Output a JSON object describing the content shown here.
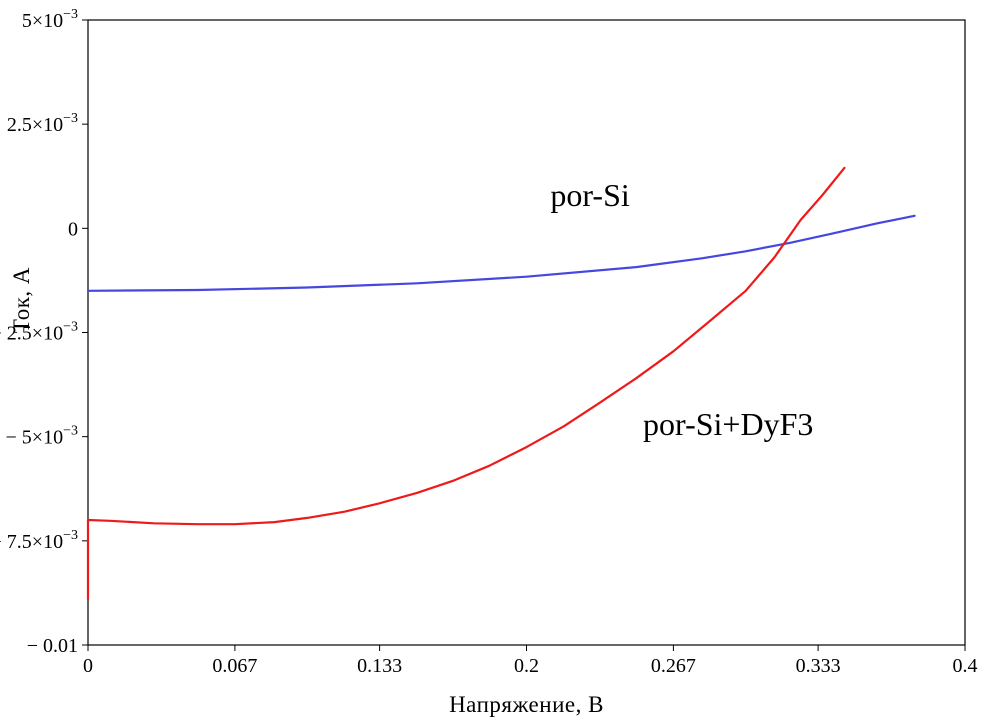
{
  "chart_data": {
    "type": "line",
    "title": "",
    "xlabel": "Напряжение, В",
    "ylabel": "Ток, А",
    "xlim": [
      0,
      0.4
    ],
    "ylim": [
      -0.01,
      0.005
    ],
    "grid": false,
    "legend_position": "none",
    "axis_color": "#000000",
    "x_ticks": [
      {
        "value": 0,
        "label": "0"
      },
      {
        "value": 0.067,
        "label": "0.067"
      },
      {
        "value": 0.133,
        "label": "0.133"
      },
      {
        "value": 0.2,
        "label": "0.2"
      },
      {
        "value": 0.267,
        "label": "0.267"
      },
      {
        "value": 0.333,
        "label": "0.333"
      },
      {
        "value": 0.4,
        "label": "0.4"
      }
    ],
    "y_ticks": [
      {
        "value": 0.005,
        "label": "5×10^−3"
      },
      {
        "value": 0.0025,
        "label": "2.5×10^−3"
      },
      {
        "value": 0,
        "label": "0"
      },
      {
        "value": -0.0025,
        "label": "− 2.5×10^−3"
      },
      {
        "value": -0.005,
        "label": "− 5×10^−3"
      },
      {
        "value": -0.0075,
        "label": "− 7.5×10^−3"
      },
      {
        "value": -0.01,
        "label": "− 0.01"
      }
    ],
    "series": [
      {
        "name": "por-Si",
        "color": "#4646e0",
        "width": 2.2,
        "points": [
          [
            0,
            -0.0015
          ],
          [
            0.05,
            -0.00148
          ],
          [
            0.1,
            -0.00142
          ],
          [
            0.15,
            -0.00132
          ],
          [
            0.2,
            -0.00116
          ],
          [
            0.25,
            -0.00093
          ],
          [
            0.28,
            -0.00072
          ],
          [
            0.3,
            -0.00055
          ],
          [
            0.32,
            -0.00035
          ],
          [
            0.34,
            -0.00012
          ],
          [
            0.36,
            0.00012
          ],
          [
            0.377,
            0.0003
          ]
        ]
      },
      {
        "name": "por-Si+DyF3",
        "color": "#ee1a1a",
        "width": 2.2,
        "points": [
          [
            0,
            -0.0089
          ],
          [
            0,
            -0.007
          ],
          [
            0.01,
            -0.00702
          ],
          [
            0.03,
            -0.00708
          ],
          [
            0.05,
            -0.0071
          ],
          [
            0.067,
            -0.0071
          ],
          [
            0.085,
            -0.00705
          ],
          [
            0.1,
            -0.00695
          ],
          [
            0.117,
            -0.0068
          ],
          [
            0.133,
            -0.0066
          ],
          [
            0.15,
            -0.00635
          ],
          [
            0.167,
            -0.00605
          ],
          [
            0.183,
            -0.0057
          ],
          [
            0.2,
            -0.00525
          ],
          [
            0.217,
            -0.00475
          ],
          [
            0.233,
            -0.0042
          ],
          [
            0.25,
            -0.0036
          ],
          [
            0.267,
            -0.00295
          ],
          [
            0.283,
            -0.00225
          ],
          [
            0.3,
            -0.0015
          ],
          [
            0.313,
            -0.0007
          ],
          [
            0.325,
            0.0002
          ],
          [
            0.335,
            0.0008
          ],
          [
            0.345,
            0.00145
          ]
        ]
      }
    ],
    "annotations": [
      {
        "text": "por-Si",
        "x": 0.229,
        "y": 0.0008,
        "color": "#000000"
      },
      {
        "text": "por-Si+DyF3",
        "x": 0.292,
        "y": -0.0047,
        "color": "#000000"
      }
    ]
  }
}
